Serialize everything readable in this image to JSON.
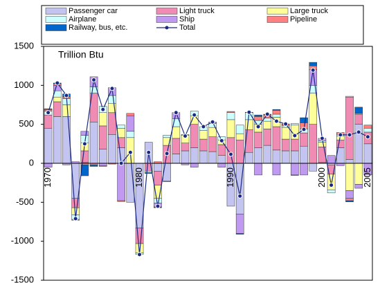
{
  "chart_data": {
    "type": "stacked-bar-line",
    "title": "Trillion Btu",
    "categories": [
      "1970",
      null,
      null,
      null,
      null,
      null,
      null,
      null,
      null,
      null,
      "1980",
      null,
      null,
      null,
      null,
      null,
      null,
      null,
      null,
      null,
      "1990",
      null,
      null,
      null,
      null,
      null,
      null,
      null,
      null,
      null,
      "2000",
      null,
      null,
      null,
      null,
      "2005"
    ],
    "ylim": [
      -1500,
      1500
    ],
    "yticks": [
      -1500,
      -1000,
      -500,
      0,
      500,
      1000,
      1500
    ],
    "grid": false,
    "series": [
      {
        "name": "Passenger car",
        "color": "#c4c4f0",
        "values": [
          450,
          600,
          600,
          -450,
          10,
          530,
          180,
          370,
          200,
          -500,
          -830,
          270,
          -100,
          -230,
          120,
          160,
          200,
          160,
          150,
          100,
          -550,
          -650,
          140,
          200,
          230,
          170,
          160,
          160,
          220,
          -100,
          10,
          -20,
          200,
          50,
          500,
          250
        ]
      },
      {
        "name": "Light truck",
        "color": "#f08cb4",
        "values": [
          170,
          190,
          0,
          -120,
          150,
          370,
          300,
          280,
          130,
          0,
          -200,
          -100,
          -180,
          230,
          200,
          100,
          300,
          150,
          190,
          140,
          330,
          300,
          290,
          200,
          210,
          300,
          150,
          150,
          170,
          500,
          200,
          -120,
          100,
          800,
          130,
          150
        ]
      },
      {
        "name": "Large truck",
        "color": "#ffff99",
        "values": [
          0,
          60,
          150,
          -90,
          100,
          0,
          170,
          120,
          120,
          330,
          -120,
          0,
          -170,
          100,
          150,
          100,
          110,
          110,
          120,
          60,
          230,
          80,
          130,
          100,
          100,
          120,
          150,
          180,
          0,
          400,
          60,
          -200,
          50,
          -350,
          -270,
          0
        ]
      },
      {
        "name": "Airplane",
        "color": "#ccffff",
        "values": [
          50,
          80,
          80,
          -60,
          100,
          80,
          80,
          100,
          40,
          80,
          -20,
          -20,
          -60,
          30,
          100,
          10,
          60,
          50,
          50,
          40,
          90,
          110,
          90,
          50,
          40,
          40,
          20,
          20,
          50,
          100,
          20,
          -40,
          20,
          10,
          10,
          50
        ]
      },
      {
        "name": "Ship",
        "color": "#c099f0",
        "values": [
          -50,
          70,
          -20,
          20,
          50,
          130,
          -30,
          100,
          -480,
          200,
          0,
          0,
          -50,
          0,
          80,
          -20,
          -50,
          0,
          20,
          -50,
          0,
          -250,
          0,
          -150,
          0,
          -150,
          0,
          -150,
          -150,
          200,
          30,
          100,
          -30,
          -100,
          -50,
          -150
        ]
      },
      {
        "name": "Pipeline",
        "color": "#ff8080",
        "values": [
          20,
          20,
          20,
          -10,
          -20,
          -20,
          -10,
          -10,
          -10,
          30,
          0,
          0,
          20,
          0,
          0,
          0,
          0,
          0,
          0,
          0,
          15,
          0,
          0,
          50,
          40,
          50,
          20,
          0,
          80,
          50,
          0,
          0,
          25,
          -30,
          0,
          40
        ]
      },
      {
        "name": "Railway, bus, etc.",
        "color": "#0066cc",
        "values": [
          10,
          10,
          40,
          0,
          -140,
          -20,
          0,
          0,
          0,
          0,
          0,
          -10,
          -10,
          -5,
          0,
          0,
          0,
          0,
          0,
          0,
          0,
          -10,
          5,
          20,
          10,
          10,
          5,
          -5,
          65,
          45,
          0,
          0,
          0,
          -15,
          80,
          0
        ]
      },
      {
        "name": "Total",
        "color": "#1a2a80",
        "values": [
          650,
          1030,
          870,
          -710,
          250,
          1070,
          690,
          960,
          0,
          140,
          -1170,
          140,
          -550,
          125,
          650,
          350,
          620,
          470,
          530,
          290,
          115,
          -420,
          655,
          470,
          630,
          540,
          505,
          355,
          435,
          1195,
          320,
          -280,
          365,
          365,
          400,
          340
        ]
      }
    ]
  }
}
